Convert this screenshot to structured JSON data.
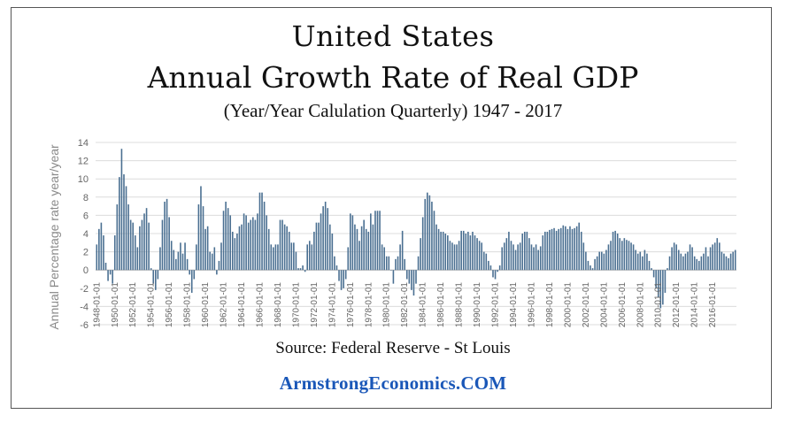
{
  "title_line1": "United States",
  "title_line2": "Annual Growth Rate of Real GDP",
  "subtitle": "(Year/Year Calulation Quarterly)   1947 - 2017",
  "source": "Source: Federal Reserve - St Louis",
  "brand": "ArmstrongEconomics.COM",
  "colors": {
    "bar": "#4a6f91",
    "grid": "#dcdcdc",
    "brand": "#1a57b8"
  },
  "chart_data": {
    "type": "bar",
    "ylabel": "Annual Percentage rate year/year",
    "ylim": [
      -6,
      14
    ],
    "yticks": [
      -6,
      -4,
      -2,
      0,
      2,
      4,
      6,
      8,
      10,
      12,
      14
    ],
    "grid": true,
    "x_tick_labels": [
      "1948-01-01",
      "1950-01-01",
      "1952-01-01",
      "1954-01-01",
      "1956-01-01",
      "1958-01-01",
      "1960-01-01",
      "1962-01-01",
      "1964-01-01",
      "1966-01-01",
      "1968-01-01",
      "1970-01-01",
      "1972-01-01",
      "1974-01-01",
      "1976-01-01",
      "1978-01-01",
      "1980-01-01",
      "1982-01-01",
      "1984-01-01",
      "1986-01-01",
      "1988-01-01",
      "1990-01-01",
      "1992-01-01",
      "1994-01-01",
      "1996-01-01",
      "1998-01-01",
      "2000-01-01",
      "2002-01-01",
      "2004-01-01",
      "2006-01-01",
      "2008-01-01",
      "2010-01-01",
      "2012-01-01",
      "2014-01-01",
      "2016-01-01"
    ],
    "x_start": "1948-01-01",
    "frequency": "quarterly",
    "values": [
      2.8,
      4.5,
      5.2,
      3.8,
      0.8,
      -1.2,
      -0.5,
      -1.5,
      3.8,
      7.2,
      10.2,
      13.3,
      10.5,
      9.2,
      7.2,
      5.5,
      5.2,
      3.8,
      2.5,
      4.8,
      5.5,
      6.2,
      6.8,
      5.2,
      0.2,
      -1.5,
      -2.2,
      -1.0,
      2.5,
      5.5,
      7.5,
      7.8,
      5.8,
      3.2,
      2.2,
      1.2,
      2.0,
      3.0,
      1.8,
      3.0,
      1.2,
      -0.5,
      -2.5,
      -1.0,
      2.8,
      7.2,
      9.2,
      7.0,
      4.5,
      4.8,
      2.0,
      1.8,
      2.5,
      -0.5,
      1.0,
      3.0,
      6.5,
      7.5,
      6.8,
      6.0,
      4.2,
      3.5,
      4.0,
      4.8,
      5.0,
      6.2,
      6.0,
      5.2,
      5.5,
      5.8,
      5.5,
      6.2,
      8.5,
      8.5,
      7.5,
      6.0,
      4.5,
      2.8,
      2.5,
      2.8,
      2.8,
      5.5,
      5.5,
      5.0,
      4.8,
      4.2,
      3.0,
      3.0,
      2.0,
      0.2,
      0.2,
      0.5,
      -0.2,
      2.8,
      3.2,
      2.8,
      4.2,
      5.2,
      5.2,
      6.2,
      7.0,
      7.5,
      6.8,
      5.0,
      4.0,
      1.5,
      0.5,
      -1.2,
      -2.2,
      -2.0,
      -1.0,
      2.5,
      6.2,
      6.0,
      5.0,
      4.5,
      3.2,
      4.8,
      5.5,
      4.5,
      4.2,
      6.2,
      5.0,
      6.5,
      6.5,
      6.5,
      2.8,
      2.5,
      1.5,
      1.5,
      0.0,
      -1.5,
      1.2,
      1.5,
      2.8,
      4.3,
      1.2,
      -1.0,
      -1.5,
      -2.2,
      -2.8,
      -1.5,
      1.5,
      3.5,
      5.8,
      7.8,
      8.5,
      8.2,
      7.5,
      6.5,
      5.0,
      4.5,
      4.2,
      4.2,
      4.0,
      3.8,
      3.2,
      3.0,
      2.8,
      2.8,
      3.2,
      4.3,
      4.3,
      4.0,
      4.2,
      3.8,
      4.2,
      3.8,
      3.5,
      3.2,
      3.0,
      2.0,
      1.8,
      1.0,
      0.5,
      -0.8,
      -1.0,
      -0.2,
      0.5,
      2.5,
      3.0,
      3.5,
      4.2,
      3.2,
      2.8,
      2.2,
      2.8,
      3.0,
      4.0,
      4.2,
      4.2,
      3.5,
      2.8,
      2.5,
      2.8,
      2.2,
      2.6,
      3.8,
      4.2,
      4.2,
      4.4,
      4.5,
      4.6,
      4.3,
      4.5,
      4.6,
      4.9,
      4.8,
      4.5,
      4.8,
      4.5,
      4.6,
      4.8,
      5.2,
      4.2,
      3.0,
      2.0,
      1.0,
      0.5,
      0.2,
      1.2,
      1.5,
      2.0,
      2.0,
      1.8,
      2.2,
      2.8,
      3.2,
      4.2,
      4.3,
      4.0,
      3.5,
      3.2,
      3.5,
      3.3,
      3.2,
      3.0,
      2.8,
      2.2,
      1.8,
      2.0,
      1.5,
      2.2,
      1.8,
      1.0,
      0.2,
      -0.8,
      -2.0,
      -3.0,
      -4.2,
      -3.8,
      -2.5,
      0.2,
      1.5,
      2.5,
      3.0,
      2.8,
      2.2,
      1.8,
      1.5,
      1.8,
      2.0,
      2.8,
      2.5,
      1.5,
      1.2,
      1.0,
      1.5,
      1.8,
      2.5,
      1.5,
      2.5,
      2.8,
      3.0,
      3.5,
      3.0,
      2.0,
      1.8,
      1.5,
      1.3,
      1.8,
      2.0,
      2.2
    ]
  }
}
